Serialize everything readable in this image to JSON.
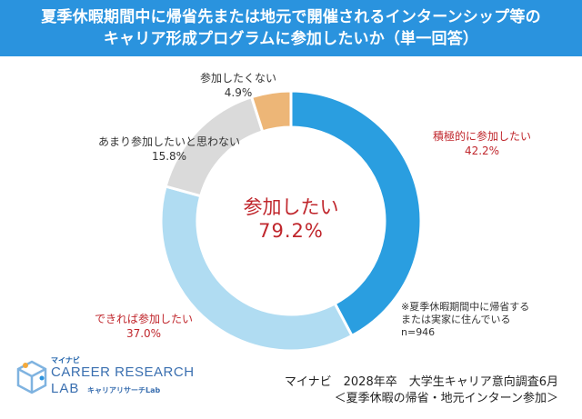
{
  "header": {
    "line1": "夏季休暇期間中に帰省先または地元で開催されるインターンシップ等の",
    "line2": "キャリア形成プログラムに参加したいか（単一回答）"
  },
  "chart_data": {
    "type": "pie",
    "subtype": "donut",
    "title": "夏季休暇期間中に帰省先または地元で開催されるインターンシップ等のキャリア形成プログラムに参加したいか（単一回答）",
    "center_label": {
      "name": "参加したい",
      "value": "79.2%"
    },
    "slices": [
      {
        "name": "積極的に参加したい",
        "value": 42.2,
        "label": "42.2%",
        "color": "#2a9ee0"
      },
      {
        "name": "できれば参加したい",
        "value": 37.0,
        "label": "37.0%",
        "color": "#b0dcf2"
      },
      {
        "name": "あまり参加したいと思わない",
        "value": 15.8,
        "label": "15.8%",
        "color": "#dadada"
      },
      {
        "name": "参加したくない",
        "value": 4.9,
        "label": "4.9%",
        "color": "#edb677"
      }
    ]
  },
  "note": {
    "line1": "※夏季休暇期間中に帰省する",
    "line2": "または実家に住んでいる",
    "line3": "n=946"
  },
  "source": {
    "line1": "マイナビ　2028年卒　大学生キャリア意向調査6月",
    "line2": "＜夏季休暇の帰省・地元インターン参加＞"
  },
  "logo": {
    "small": "マイナビ",
    "main": "CAREER RESEARCH",
    "lab": "LAB",
    "sub": "キャリアリサーチLab"
  }
}
